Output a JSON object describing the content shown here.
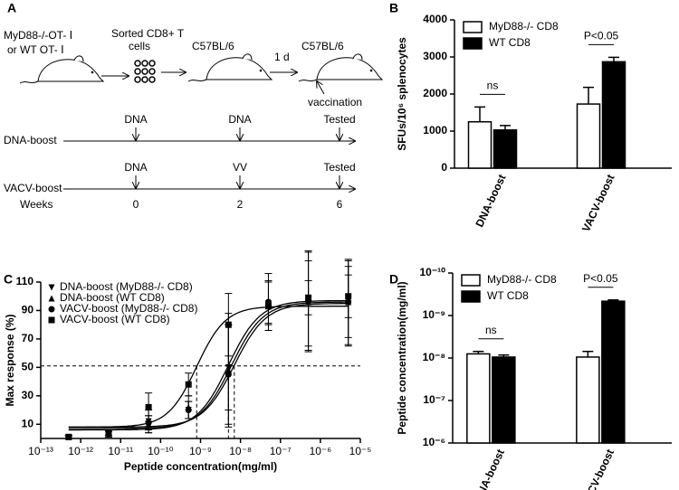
{
  "diagram": {
    "panel": "A",
    "donor": [
      "MyD88-/-OT- Ⅰ",
      "or  WT  OT- Ⅰ"
    ],
    "sorted": [
      "Sorted CD8+ T",
      "cells"
    ],
    "recipient1": "C57BL/6",
    "interval": "1 d",
    "recipient2": "C57BL/6",
    "vaccination": "vaccination",
    "timeline": [
      {
        "name": "DNA-boost",
        "events": [
          "DNA",
          "DNA",
          "Tested"
        ]
      },
      {
        "name": "VACV-boost",
        "events": [
          "DNA",
          "VV",
          "Tested"
        ]
      }
    ],
    "weeks": {
      "label": "Weeks",
      "values": [
        0,
        2,
        6
      ]
    }
  },
  "chart_data": [
    {
      "panel": "B",
      "type": "bar",
      "ylabel": "SFUs/10⁶ splenocytes",
      "categories": [
        "DNA-boost",
        "VACV-boost"
      ],
      "series": [
        {
          "name": "MyD88-/- CD8",
          "color": "#ffffff",
          "values": [
            1250,
            1730
          ],
          "errors": [
            400,
            450
          ]
        },
        {
          "name": "WT CD8",
          "color": "#000000",
          "values": [
            1030,
            2870
          ],
          "errors": [
            120,
            120
          ]
        }
      ],
      "annotations": [
        "ns",
        "P<0.05"
      ],
      "ylim": [
        0,
        4000
      ],
      "yticks": [
        0,
        1000,
        2000,
        3000,
        4000
      ],
      "legend": "upper left"
    },
    {
      "panel": "C",
      "type": "scatter",
      "xlabel": "Peptide concentration(mg/ml)",
      "ylabel": "Max response (%)",
      "xscale": "log",
      "x": [
        5e-13,
        5e-12,
        5e-11,
        5e-10,
        5e-09,
        5e-08,
        5e-07,
        5e-06
      ],
      "series": [
        {
          "name": "DNA-boost (MyD88-/- CD8)",
          "marker": "triangle-down",
          "color": "#000000",
          "values": [
            1,
            3,
            12,
            20,
            50,
            95,
            95,
            95
          ],
          "errors": [
            1,
            2,
            8,
            6,
            30,
            15,
            30,
            30
          ],
          "fit": {
            "bottom": 6,
            "top": 97,
            "ec50": 5e-09,
            "hill": 1.1
          }
        },
        {
          "name": "DNA-boost (WT CD8)",
          "marker": "triangle-up",
          "color": "#000000",
          "values": [
            1,
            4,
            10,
            22,
            48,
            96,
            96,
            96
          ],
          "errors": [
            1,
            2,
            6,
            8,
            40,
            20,
            35,
            30
          ],
          "fit": {
            "bottom": 7,
            "top": 96,
            "ec50": 6e-09,
            "hill": 1.1
          }
        },
        {
          "name": "VACV-boost (MyD88-/- CD8)",
          "marker": "circle",
          "color": "#000000",
          "values": [
            1,
            3,
            11,
            20,
            45,
            96,
            97,
            96
          ],
          "errors": [
            1,
            2,
            5,
            6,
            35,
            15,
            35,
            25
          ],
          "fit": {
            "bottom": 8,
            "top": 95,
            "ec50": 7e-09,
            "hill": 1.1
          }
        },
        {
          "name": "VACV-boost (WT CD8)",
          "marker": "square",
          "color": "#000000",
          "values": [
            1,
            4,
            22,
            38,
            80,
            93,
            99,
            100
          ],
          "errors": [
            1,
            2,
            10,
            8,
            22,
            17,
            12,
            15
          ],
          "fit": {
            "bottom": 8,
            "top": 93,
            "ec50": 8e-10,
            "hill": 1.2
          }
        }
      ],
      "xlim": [
        1e-13,
        1e-05
      ],
      "xticks": [
        {
          "value": 1e-13,
          "label": "10⁻¹³"
        },
        {
          "value": 1e-12,
          "label": "10⁻¹²"
        },
        {
          "value": 1e-11,
          "label": "10⁻¹¹"
        },
        {
          "value": 1e-10,
          "label": "10⁻¹⁰"
        },
        {
          "value": 1e-09,
          "label": "10⁻⁹"
        },
        {
          "value": 1e-08,
          "label": "10⁻⁸"
        },
        {
          "value": 1e-07,
          "label": "10⁻⁷"
        },
        {
          "value": 1e-06,
          "label": "10⁻⁶"
        },
        {
          "value": 1e-05,
          "label": "10⁻⁵"
        }
      ],
      "ylim": [
        0,
        110
      ],
      "yticks": [
        10,
        30,
        50,
        70,
        90,
        110
      ],
      "hline": 51,
      "vlines": [
        8e-10,
        5e-09,
        7e-09
      ],
      "legend": "upper left"
    },
    {
      "panel": "D",
      "type": "bar",
      "ylabel": "Peptide concentration(mg/ml)",
      "yscale": "log",
      "categories": [
        "DNA-boost",
        "VACV-boost"
      ],
      "series": [
        {
          "name": "MyD88-/- CD8",
          "color": "#ffffff",
          "values": [
            8e-09,
            9.5e-09
          ],
          "errors": [
            1e-09,
            2.5e-09
          ]
        },
        {
          "name": "WT CD8",
          "color": "#000000",
          "values": [
            9.5e-09,
            4.6e-10
          ],
          "errors": [
            1e-09,
            3e-11
          ]
        }
      ],
      "annotations": [
        "ns",
        "P<0.05"
      ],
      "ylim": [
        1e-06,
        1e-10
      ],
      "yticks": [
        {
          "value": 1e-06,
          "label": "10⁻⁶"
        },
        {
          "value": 1e-07,
          "label": "10⁻⁷"
        },
        {
          "value": 1e-08,
          "label": "10⁻⁸"
        },
        {
          "value": 1e-09,
          "label": "10⁻⁹"
        },
        {
          "value": 1e-10,
          "label": "10⁻¹⁰"
        }
      ],
      "legend": "upper left"
    }
  ]
}
